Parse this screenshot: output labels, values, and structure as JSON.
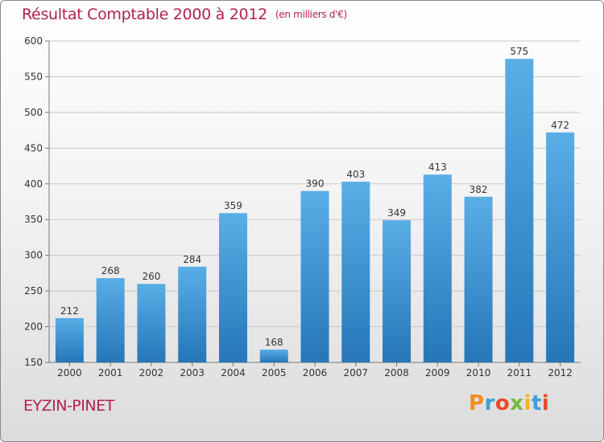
{
  "header": {
    "title": "Résultat Comptable 2000 à 2012",
    "subtitle": "(en milliers d'€)"
  },
  "footer": {
    "commune": "EYZIN-PINET",
    "logo_letters": [
      "P",
      "r",
      "o",
      "x",
      "i",
      "t",
      "i"
    ]
  },
  "colors": {
    "title": "#b2204d",
    "bar_top": "#5aaee6",
    "bar_bottom": "#2676b8",
    "grid": "#c8c8c8"
  },
  "chart_data": {
    "type": "bar",
    "title": "Résultat Comptable 2000 à 2012",
    "subtitle": "(en milliers d'€)",
    "xlabel": "",
    "ylabel": "",
    "categories": [
      "2000",
      "2001",
      "2002",
      "2003",
      "2004",
      "2005",
      "2006",
      "2007",
      "2008",
      "2009",
      "2010",
      "2011",
      "2012"
    ],
    "values": [
      212,
      268,
      260,
      284,
      359,
      168,
      390,
      403,
      349,
      413,
      382,
      575,
      472
    ],
    "ylim": [
      150,
      600
    ],
    "yticks": [
      150,
      200,
      250,
      300,
      350,
      400,
      450,
      500,
      550,
      600
    ],
    "grid": true,
    "legend": "none"
  }
}
